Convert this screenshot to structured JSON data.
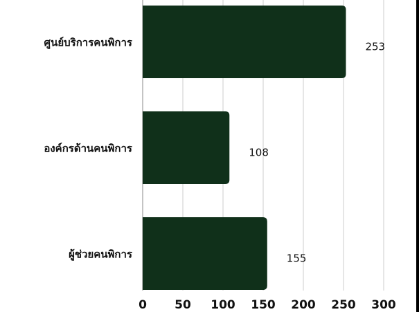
{
  "chart_data": {
    "type": "bar",
    "orientation": "horizontal",
    "categories": [
      "ศูนย์บริการคนพิการ",
      "องค์กรด้านคนพิการ",
      "ผู้ช่วยคนพิการ"
    ],
    "values": [
      253,
      108,
      155
    ],
    "value_labels": [
      "253",
      "108",
      "155"
    ],
    "xticks": [
      0,
      50,
      100,
      150,
      200,
      250,
      300
    ],
    "xtick_labels": [
      "0",
      "50",
      "100",
      "150",
      "200",
      "250",
      "300"
    ],
    "xlim": [
      0,
      300
    ],
    "grid": "vertical",
    "bar_color": "#10301a",
    "grid_color": "#cccccc"
  }
}
